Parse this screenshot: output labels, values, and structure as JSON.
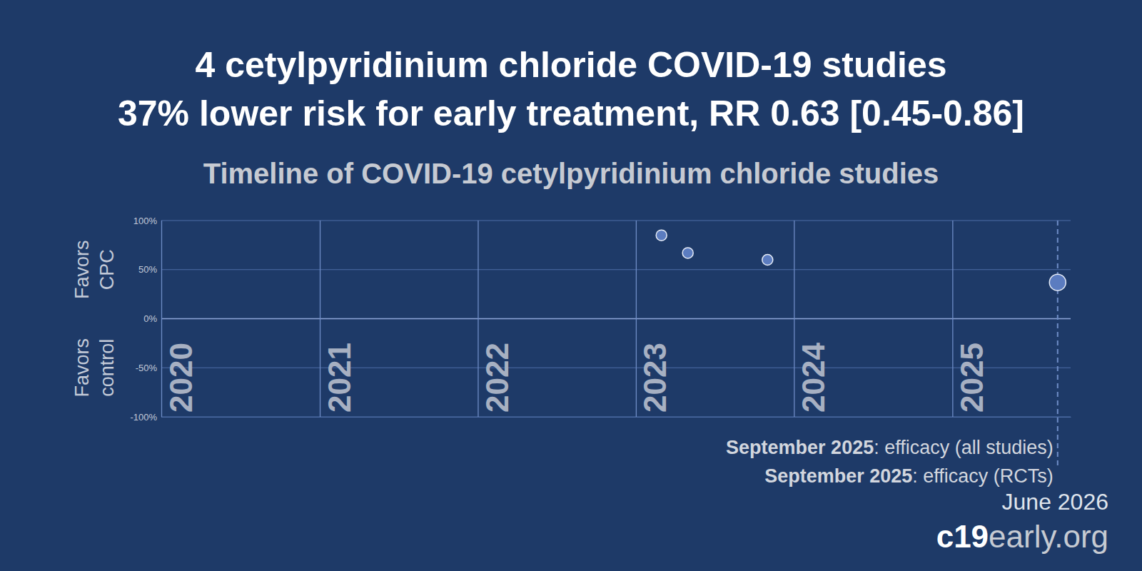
{
  "chart_data": {
    "type": "scatter",
    "title": "4 cetylpyridinium chloride COVID-19 studies",
    "subtitle": "37% lower risk for early treatment, RR 0.63 [0.45-0.86]",
    "plot_title": "Timeline of COVID-19 cetylpyridinium chloride studies",
    "ylabel": [
      "Favors CPC",
      "Favors control"
    ],
    "xlim": [
      "2020-01",
      "2025-10"
    ],
    "xticks": [
      {
        "value": "2020-01",
        "label": "2020"
      },
      {
        "value": "2021-01",
        "label": "2021"
      },
      {
        "value": "2022-01",
        "label": "2022"
      },
      {
        "value": "2023-01",
        "label": "2023"
      },
      {
        "value": "2024-01",
        "label": "2024"
      },
      {
        "value": "2025-01",
        "label": "2025"
      }
    ],
    "ylim": [
      -100,
      100
    ],
    "yticks": [
      {
        "value": -100,
        "label": "-100%"
      },
      {
        "value": -50,
        "label": "-50%"
      },
      {
        "value": 0,
        "label": "0%"
      },
      {
        "value": 50,
        "label": "50%"
      },
      {
        "value": 100,
        "label": "100%"
      }
    ],
    "grid": true,
    "series": [
      {
        "x": [
          "2023-03",
          "2023-05",
          "2023-11"
        ],
        "values": [
          85,
          67,
          60
        ],
        "color": "#5b7cc0",
        "marker": "circle"
      },
      {
        "x": [
          "2025-09"
        ],
        "values": [
          37
        ],
        "color": "#5b7cc0",
        "marker": "large-circle"
      }
    ],
    "annotations": [
      "September 2025: efficacy (all studies)",
      "September 2025: efficacy (RCTs)",
      "June 2026",
      "c19early.org"
    ]
  }
}
